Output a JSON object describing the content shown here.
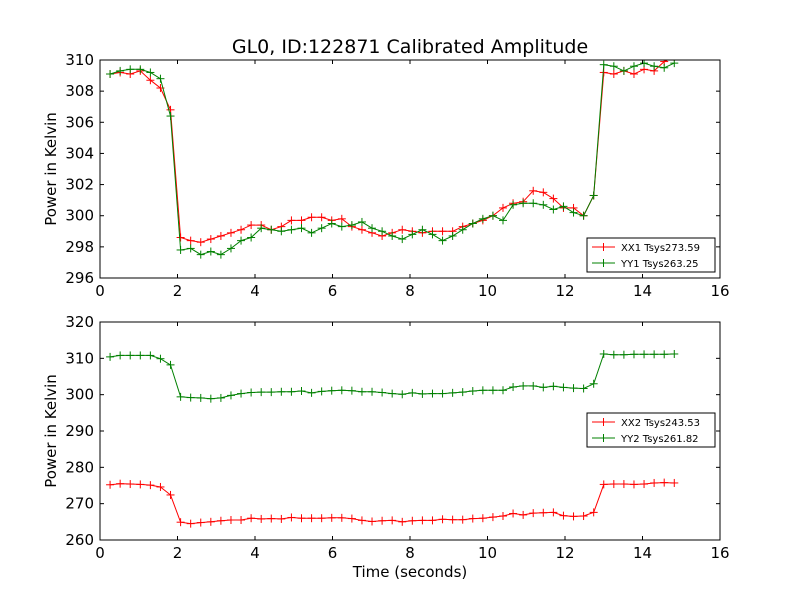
{
  "title": "GL0, ID:122871 Calibrated Amplitude",
  "chart_data": [
    {
      "type": "line",
      "xlabel": "",
      "ylabel": "Power in Kelvin",
      "xlim": [
        0,
        16
      ],
      "ylim": [
        296,
        310
      ],
      "xticks": [
        "0",
        "2",
        "4",
        "6",
        "8",
        "10",
        "12",
        "14",
        "16"
      ],
      "yticks": [
        "296",
        "298",
        "300",
        "302",
        "304",
        "306",
        "308",
        "310"
      ],
      "legend_position": "lower-right",
      "x": [
        0.26,
        0.52,
        0.78,
        1.04,
        1.3,
        1.56,
        1.82,
        2.08,
        2.34,
        2.6,
        2.86,
        3.12,
        3.38,
        3.64,
        3.9,
        4.16,
        4.42,
        4.68,
        4.94,
        5.2,
        5.46,
        5.72,
        5.98,
        6.24,
        6.5,
        6.76,
        7.02,
        7.28,
        7.54,
        7.8,
        8.06,
        8.32,
        8.58,
        8.84,
        9.1,
        9.36,
        9.62,
        9.88,
        10.14,
        10.4,
        10.66,
        10.92,
        11.18,
        11.44,
        11.7,
        11.96,
        12.22,
        12.48,
        12.74,
        13.0,
        13.26,
        13.52,
        13.78,
        14.04,
        14.3,
        14.56,
        14.82
      ],
      "series": [
        {
          "name": "XX1 Tsys273.59",
          "color": "#ff0000",
          "values": [
            309.1,
            309.2,
            309.1,
            309.3,
            308.7,
            308.2,
            306.8,
            298.6,
            298.4,
            298.3,
            298.5,
            298.7,
            298.9,
            299.1,
            299.4,
            299.4,
            299.1,
            299.3,
            299.7,
            299.7,
            299.9,
            299.9,
            299.7,
            299.8,
            299.3,
            299.1,
            298.9,
            298.7,
            298.9,
            299.1,
            299.0,
            298.9,
            299.0,
            299.0,
            299.0,
            299.3,
            299.5,
            299.7,
            300.0,
            300.5,
            300.8,
            300.9,
            301.6,
            301.5,
            301.1,
            300.5,
            300.5,
            300.0,
            301.3,
            309.2,
            309.1,
            309.3,
            309.1,
            309.4,
            309.3,
            309.9,
            310.2
          ]
        },
        {
          "name": "YY1 Tsys263.25",
          "color": "#008000",
          "values": [
            309.1,
            309.3,
            309.4,
            309.4,
            309.2,
            308.8,
            306.4,
            297.8,
            297.9,
            297.5,
            297.7,
            297.5,
            297.9,
            298.4,
            298.6,
            299.2,
            299.1,
            299.0,
            299.1,
            299.2,
            298.9,
            299.2,
            299.5,
            299.3,
            299.4,
            299.6,
            299.2,
            299.0,
            298.7,
            298.5,
            298.8,
            299.1,
            298.8,
            298.4,
            298.7,
            299.1,
            299.5,
            299.8,
            300.0,
            299.7,
            300.7,
            300.8,
            300.8,
            300.7,
            300.4,
            300.6,
            300.2,
            300.0,
            301.3,
            309.7,
            309.6,
            309.3,
            309.6,
            309.8,
            309.6,
            309.5,
            309.8
          ]
        }
      ]
    },
    {
      "type": "line",
      "xlabel": "Time (seconds)",
      "ylabel": "Power in Kelvin",
      "xlim": [
        0,
        16
      ],
      "ylim": [
        260,
        320
      ],
      "xticks": [
        "0",
        "2",
        "4",
        "6",
        "8",
        "10",
        "12",
        "14",
        "16"
      ],
      "yticks": [
        "260",
        "270",
        "280",
        "290",
        "300",
        "310",
        "320"
      ],
      "legend_position": "center-right",
      "x": [
        0.26,
        0.52,
        0.78,
        1.04,
        1.3,
        1.56,
        1.82,
        2.08,
        2.34,
        2.6,
        2.86,
        3.12,
        3.38,
        3.64,
        3.9,
        4.16,
        4.42,
        4.68,
        4.94,
        5.2,
        5.46,
        5.72,
        5.98,
        6.24,
        6.5,
        6.76,
        7.02,
        7.28,
        7.54,
        7.8,
        8.06,
        8.32,
        8.58,
        8.84,
        9.1,
        9.36,
        9.62,
        9.88,
        10.14,
        10.4,
        10.66,
        10.92,
        11.18,
        11.44,
        11.7,
        11.96,
        12.22,
        12.48,
        12.74,
        13.0,
        13.26,
        13.52,
        13.78,
        14.04,
        14.3,
        14.56,
        14.82
      ],
      "series": [
        {
          "name": "XX2 Tsys243.53",
          "color": "#ff0000",
          "values": [
            275.2,
            275.5,
            275.4,
            275.3,
            275.1,
            274.6,
            272.4,
            264.9,
            264.5,
            264.8,
            265.0,
            265.3,
            265.5,
            265.5,
            266.0,
            265.8,
            265.9,
            265.8,
            266.2,
            266.0,
            266.0,
            266.0,
            266.1,
            266.1,
            265.9,
            265.4,
            265.1,
            265.3,
            265.4,
            265.0,
            265.3,
            265.4,
            265.4,
            265.7,
            265.6,
            265.6,
            265.9,
            266.0,
            266.3,
            266.6,
            267.3,
            266.9,
            267.4,
            267.5,
            267.6,
            266.7,
            266.5,
            266.6,
            267.6,
            275.3,
            275.4,
            275.4,
            275.3,
            275.4,
            275.7,
            275.8,
            275.7
          ]
        },
        {
          "name": "YY2 Tsys261.82",
          "color": "#008000",
          "values": [
            310.4,
            310.8,
            310.8,
            310.8,
            310.8,
            309.9,
            308.2,
            299.4,
            299.2,
            299.1,
            298.9,
            299.1,
            299.8,
            300.3,
            300.6,
            300.7,
            300.7,
            300.8,
            300.8,
            301.0,
            300.5,
            300.9,
            301.1,
            301.2,
            301.1,
            300.8,
            300.8,
            300.6,
            300.3,
            300.1,
            300.5,
            300.2,
            300.3,
            300.3,
            300.5,
            300.7,
            301.0,
            301.2,
            301.2,
            301.2,
            302.1,
            302.4,
            302.4,
            302.0,
            302.3,
            302.0,
            301.8,
            301.7,
            303.0,
            311.2,
            311.0,
            311.0,
            311.1,
            311.1,
            311.1,
            311.1,
            311.2
          ]
        }
      ]
    }
  ]
}
